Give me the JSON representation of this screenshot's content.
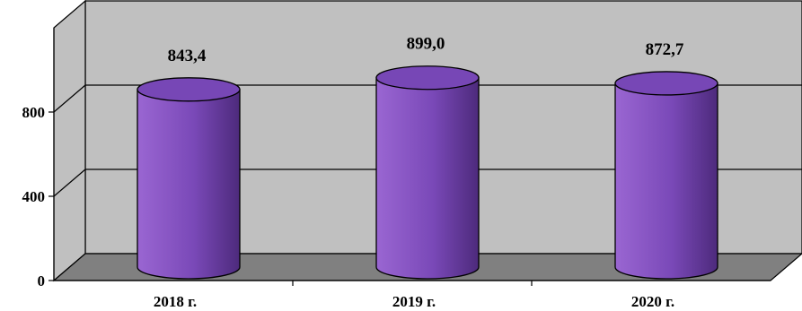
{
  "chart_data": {
    "type": "bar",
    "style": "3d-cylinder",
    "categories": [
      "2018 г.",
      "2019 г.",
      "2020 г."
    ],
    "values": [
      843.4,
      899.0,
      872.7
    ],
    "value_labels": [
      "843,4",
      "899,0",
      "872,7"
    ],
    "yticks": [
      0,
      400,
      800
    ],
    "ytick_labels": [
      "0",
      "400",
      "800"
    ],
    "ylim": [
      0,
      1200
    ],
    "grid": true,
    "legend": "none",
    "colors": {
      "bar_front": "#7a49b8",
      "bar_light": "#9a66d2",
      "bar_dark": "#4d2a7c",
      "bar_top": "#7747b6",
      "wall": "#c0c0c0",
      "floor": "#808080"
    }
  }
}
